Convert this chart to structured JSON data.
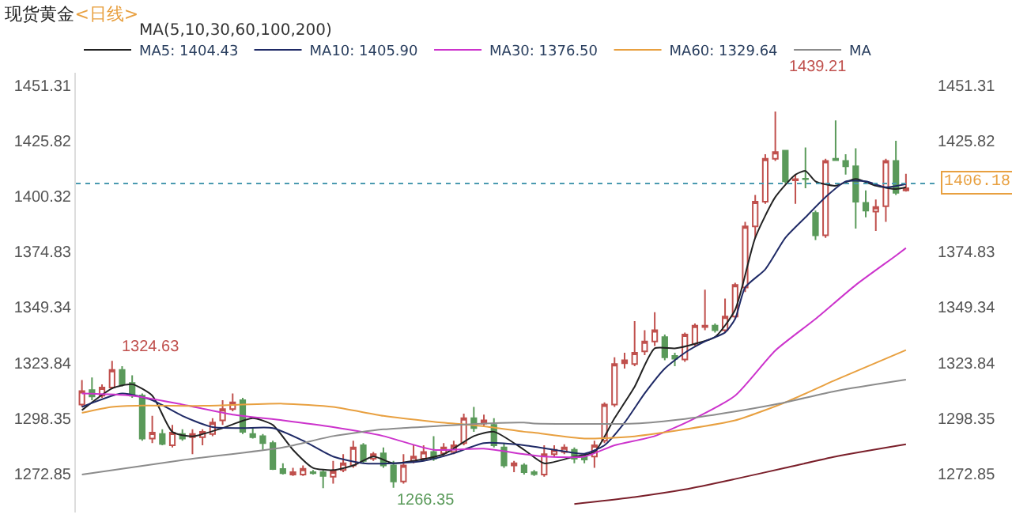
{
  "chart_data": {
    "type": "candlestick",
    "title": "现货黄金",
    "subtitle": "<日线>",
    "annotations": [
      "MA(5,10,30,60,100,200)",
      "1439.21",
      "1324.63",
      "1266.35"
    ],
    "categories": [
      null,
      null,
      null,
      null,
      null,
      null,
      null,
      null,
      null,
      null,
      null,
      null,
      null,
      null,
      null,
      null,
      null,
      null,
      null,
      null,
      null,
      null,
      null,
      null,
      null,
      null,
      null,
      null,
      null,
      null,
      null,
      null,
      null,
      null,
      null,
      null,
      null,
      null,
      null,
      null,
      null,
      null,
      null,
      null,
      null,
      null,
      null,
      null,
      null,
      null,
      null,
      null,
      null,
      null,
      null,
      null,
      null,
      null,
      null,
      null,
      null,
      null,
      null,
      null,
      null,
      null,
      null,
      null,
      null,
      null,
      null,
      null,
      null,
      null,
      null,
      null,
      null,
      null,
      null,
      null,
      null,
      null,
      null
    ],
    "ohlc": [
      [
        1304.6,
        1315.9,
        1303.5,
        1310.8
      ],
      [
        1311.2,
        1317.0,
        1306.6,
        1308.3
      ],
      [
        1308.7,
        1313.9,
        1307.7,
        1312.4
      ],
      [
        1312.4,
        1324.63,
        1311.8,
        1320.5
      ],
      [
        1320.5,
        1322.2,
        1312.9,
        1313.9
      ],
      [
        1314.5,
        1318.0,
        1307.7,
        1308.7
      ],
      [
        1308.7,
        1309.7,
        1288.0,
        1289.0
      ],
      [
        1289.0,
        1299.4,
        1286.9,
        1291.7
      ],
      [
        1291.1,
        1293.2,
        1285.9,
        1286.5
      ],
      [
        1285.9,
        1295.2,
        1284.9,
        1291.7
      ],
      [
        1291.1,
        1293.2,
        1288.0,
        1289.0
      ],
      [
        1289.6,
        1293.2,
        1281.8,
        1291.1
      ],
      [
        1289.6,
        1293.2,
        1285.9,
        1292.1
      ],
      [
        1291.1,
        1298.3,
        1290.1,
        1296.3
      ],
      [
        1297.3,
        1306.6,
        1295.2,
        1302.5
      ],
      [
        1302.5,
        1309.7,
        1301.5,
        1305.6
      ],
      [
        1306.6,
        1307.7,
        1291.1,
        1292.1
      ],
      [
        1291.1,
        1293.8,
        1289.0,
        1289.6
      ],
      [
        1290.1,
        1291.1,
        1283.8,
        1286.9
      ],
      [
        1286.9,
        1288.0,
        1274.5,
        1275.0
      ],
      [
        1275.0,
        1277.6,
        1272.4,
        1273.1
      ],
      [
        1272.4,
        1275.5,
        1271.8,
        1273.5
      ],
      [
        1272.4,
        1276.6,
        1271.8,
        1275.1
      ],
      [
        1273.5,
        1274.5,
        1272.4,
        1273.1
      ],
      [
        1273.5,
        1274.5,
        1266.2,
        1271.8
      ],
      [
        1271.4,
        1278.7,
        1268.3,
        1273.9
      ],
      [
        1274.5,
        1281.8,
        1273.5,
        1277.6
      ],
      [
        1276.6,
        1288.0,
        1275.5,
        1284.9
      ],
      [
        1285.9,
        1286.9,
        1277.6,
        1278.7
      ],
      [
        1279.7,
        1282.8,
        1278.7,
        1281.8
      ],
      [
        1282.2,
        1284.9,
        1275.5,
        1276.6
      ],
      [
        1276.6,
        1278.7,
        1266.35,
        1269.3
      ],
      [
        1269.3,
        1281.8,
        1268.3,
        1276.6
      ],
      [
        1278.7,
        1285.9,
        1277.6,
        1280.7
      ],
      [
        1279.7,
        1285.9,
        1278.7,
        1282.8
      ],
      [
        1282.8,
        1290.1,
        1278.7,
        1279.7
      ],
      [
        1282.2,
        1286.9,
        1280.7,
        1284.9
      ],
      [
        1282.8,
        1288.0,
        1281.8,
        1285.9
      ],
      [
        1286.9,
        1300.4,
        1285.9,
        1298.3
      ],
      [
        1298.3,
        1303.5,
        1292.1,
        1293.8
      ],
      [
        1295.9,
        1300.0,
        1294.2,
        1297.3
      ],
      [
        1295.2,
        1298.3,
        1284.9,
        1285.9
      ],
      [
        1284.9,
        1286.9,
        1275.5,
        1276.6
      ],
      [
        1276.6,
        1278.7,
        1273.5,
        1277.6
      ],
      [
        1276.6,
        1277.6,
        1272.4,
        1273.5
      ],
      [
        1273.5,
        1274.5,
        1271.8,
        1272.6
      ],
      [
        1272.4,
        1285.9,
        1271.4,
        1281.8
      ],
      [
        1281.8,
        1285.9,
        1280.7,
        1283.8
      ],
      [
        1282.8,
        1286.3,
        1281.8,
        1284.9
      ],
      [
        1283.8,
        1284.9,
        1277.6,
        1279.7
      ],
      [
        1280.7,
        1281.8,
        1277.6,
        1279.3
      ],
      [
        1280.7,
        1288.0,
        1275.5,
        1285.9
      ],
      [
        1288.0,
        1305.6,
        1286.9,
        1304.6
      ],
      [
        1304.6,
        1326.3,
        1303.5,
        1323.2
      ],
      [
        1323.6,
        1328.4,
        1321.1,
        1324.9
      ],
      [
        1323.2,
        1342.9,
        1322.2,
        1328.4
      ],
      [
        1329.0,
        1338.7,
        1327.3,
        1333.6
      ],
      [
        1333.6,
        1347.0,
        1331.5,
        1338.7
      ],
      [
        1335.6,
        1336.7,
        1324.9,
        1326.3
      ],
      [
        1326.9,
        1328.4,
        1322.2,
        1325.7
      ],
      [
        1325.3,
        1337.7,
        1324.2,
        1336.7
      ],
      [
        1332.5,
        1341.8,
        1331.5,
        1340.8
      ],
      [
        1340.2,
        1357.4,
        1338.7,
        1340.8
      ],
      [
        1340.8,
        1341.8,
        1337.7,
        1338.7
      ],
      [
        1338.7,
        1353.3,
        1337.7,
        1345.0
      ],
      [
        1345.0,
        1360.5,
        1343.9,
        1359.5
      ],
      [
        1358.4,
        1388.5,
        1356.3,
        1386.4
      ],
      [
        1386.4,
        1400.9,
        1381.2,
        1397.8
      ],
      [
        1397.8,
        1419.6,
        1396.8,
        1417.5
      ],
      [
        1417.5,
        1439.21,
        1416.5,
        1420.6
      ],
      [
        1421.2,
        1421.6,
        1406.1,
        1407.1
      ],
      [
        1407.6,
        1410.2,
        1396.8,
        1408.1
      ],
      [
        1408.3,
        1422.7,
        1404.0,
        1408.1
      ],
      [
        1392.6,
        1393.7,
        1380.2,
        1382.3
      ],
      [
        1382.3,
        1417.5,
        1381.2,
        1416.5
      ],
      [
        1417.5,
        1435.1,
        1416.5,
        1416.9
      ],
      [
        1416.5,
        1419.6,
        1410.2,
        1414.0
      ],
      [
        1414.0,
        1422.3,
        1385.4,
        1397.8
      ],
      [
        1397.2,
        1403.0,
        1390.6,
        1393.7
      ],
      [
        1393.2,
        1398.8,
        1384.3,
        1395.3
      ],
      [
        1395.7,
        1417.5,
        1388.5,
        1416.5
      ],
      [
        1416.5,
        1425.8,
        1400.9,
        1401.9
      ],
      [
        1403.0,
        1410.6,
        1402.4,
        1404.0
      ]
    ],
    "series": [
      {
        "name": "MA5: 1404.43",
        "type": "line",
        "color": "#222222",
        "values": [
          1302,
          null,
          null,
          1312,
          null,
          1313.9,
          null,
          1308.7,
          null,
          1292,
          null,
          1290,
          null,
          null,
          1293.8,
          null,
          null,
          1298.3,
          null,
          1295.2,
          null,
          1283.8,
          null,
          1275.5,
          null,
          1274.5,
          null,
          1276.6,
          null,
          1280.7,
          null,
          1277.6,
          null,
          1278.7,
          null,
          null,
          1281.8,
          null,
          null,
          1290.1,
          null,
          1292.1,
          null,
          null,
          1283.8,
          null,
          1277.6,
          null,
          null,
          1280.7,
          null,
          1282.8,
          null,
          1298.3,
          null,
          1312.8,
          null,
          1330.4,
          null,
          1330.4,
          null,
          1332.5,
          null,
          1335.6,
          null,
          1348.1,
          null,
          1381.2,
          null,
          1399.9,
          null,
          1410.2,
          1411.9,
          1407.1,
          null,
          1405.1,
          null,
          1408.2,
          null,
          1405.1,
          null,
          1403.6,
          1404.4
        ]
      },
      {
        "name": "MA10: 1405.90",
        "type": "line",
        "color": "#1f2a66",
        "values": [
          1303.5,
          null,
          null,
          null,
          1309.7,
          null,
          null,
          1306.6,
          null,
          null,
          1299.4,
          null,
          null,
          1294.2,
          null,
          null,
          1293.8,
          null,
          null,
          1293.8,
          null,
          null,
          1288.0,
          null,
          null,
          1280.7,
          null,
          null,
          1277.6,
          null,
          null,
          1277.6,
          null,
          null,
          1278.7,
          null,
          null,
          1282.2,
          null,
          null,
          1286.9,
          null,
          null,
          null,
          1285.9,
          null,
          null,
          1283.8,
          null,
          null,
          1282,
          null,
          1285.9,
          null,
          1296.3,
          null,
          1309.7,
          null,
          1321.1,
          null,
          1328.4,
          null,
          1333.6,
          null,
          1337.7,
          1343.9,
          1358.4,
          null,
          1366.7,
          null,
          1381.2,
          null,
          1390.6,
          null,
          1399.9,
          null,
          1407.1,
          null,
          1407.1,
          null,
          1404.4,
          null,
          1405.9
        ]
      },
      {
        "name": "MA30: 1376.50",
        "type": "line",
        "color": "#cc33cc",
        "values": [
          1309.7,
          null,
          null,
          null,
          null,
          1308.7,
          null,
          null,
          null,
          null,
          1304.6,
          null,
          null,
          null,
          null,
          1300.0,
          null,
          null,
          null,
          null,
          1297.3,
          null,
          null,
          null,
          null,
          1294.2,
          null,
          null,
          null,
          null,
          1290.1,
          null,
          null,
          null,
          null,
          1283.8,
          null,
          null,
          null,
          null,
          1284.3,
          null,
          null,
          null,
          1281.8,
          null,
          1280.7,
          null,
          null,
          null,
          1280.7,
          null,
          null,
          1285.9,
          null,
          null,
          null,
          1290.1,
          null,
          null,
          null,
          1298.3,
          null,
          null,
          null,
          1308.7,
          null,
          null,
          null,
          1329.4,
          null,
          null,
          null,
          1343.9,
          null,
          null,
          null,
          1359.5,
          null,
          null,
          null,
          1373,
          1376.5
        ]
      },
      {
        "name": "MA60: 1329.64",
        "type": "line",
        "color": "#e8a040",
        "values": [
          1300.8,
          null,
          null,
          1303.5,
          null,
          null,
          1304.1,
          null,
          null,
          null,
          null,
          null,
          1304.0,
          null,
          null,
          null,
          null,
          null,
          null,
          null,
          1305,
          null,
          null,
          null,
          null,
          1303.5,
          null,
          null,
          null,
          null,
          1299.4,
          null,
          null,
          null,
          null,
          1296.7,
          null,
          null,
          null,
          null,
          1294.6,
          null,
          null,
          null,
          1292.1,
          1291.7,
          null,
          null,
          null,
          null,
          1289.0,
          null,
          null,
          null,
          null,
          1290.0,
          null,
          null,
          null,
          null,
          1293.2,
          null,
          null,
          null,
          null,
          1297.3,
          null,
          null,
          null,
          null,
          1305.6,
          null,
          null,
          null,
          null,
          1315.9,
          null,
          null,
          null,
          null,
          null,
          null,
          1329.6
        ]
      },
      {
        "name": "MA",
        "type": "line",
        "color": "#8c8c8c",
        "values": [
          1272.4,
          null,
          null,
          null,
          null,
          null,
          null,
          null,
          null,
          null,
          1279.1,
          null,
          null,
          null,
          null,
          null,
          null,
          null,
          null,
          null,
          1284.9,
          null,
          null,
          null,
          null,
          1290.1,
          null,
          null,
          null,
          null,
          1293.2,
          null,
          null,
          null,
          null,
          1294.6,
          null,
          null,
          null,
          null,
          1295.9,
          null,
          null,
          null,
          1296.3,
          1295.9,
          null,
          null,
          null,
          null,
          null,
          null,
          null,
          null,
          null,
          1295.9,
          null,
          null,
          null,
          null,
          1298.0,
          null,
          null,
          null,
          null,
          1301.4,
          null,
          null,
          null,
          null,
          1305.6,
          null,
          null,
          null,
          null,
          1310.8,
          null,
          null,
          null,
          null,
          null,
          null,
          1316.0
        ]
      },
      {
        "type": "line",
        "color": "#7a1f2a",
        "values": [
          null,
          null,
          null,
          null,
          null,
          null,
          null,
          null,
          null,
          null,
          null,
          null,
          null,
          null,
          null,
          null,
          null,
          null,
          null,
          null,
          null,
          null,
          null,
          null,
          null,
          null,
          null,
          null,
          null,
          null,
          null,
          null,
          null,
          null,
          null,
          null,
          null,
          null,
          null,
          null,
          null,
          null,
          null,
          null,
          null,
          null,
          null,
          null,
          null,
          1258.9,
          null,
          null,
          null,
          null,
          null,
          1262.1,
          null,
          null,
          null,
          null,
          1265.6,
          null,
          null,
          null,
          null,
          1270.4,
          null,
          null,
          null,
          null,
          1275.5,
          null,
          null,
          null,
          null,
          1280.7,
          null,
          null,
          null,
          null,
          null,
          null,
          1286.3
        ]
      }
    ],
    "ylim": [
      1255,
      1457
    ],
    "yticks": [
      1272.85,
      1298.35,
      1323.84,
      1349.34,
      1374.83,
      1400.32,
      1425.82,
      1451.31
    ],
    "y2lim": [
      1255,
      1457
    ],
    "y2ticks": [
      1272.85,
      1298.35,
      1323.84,
      1349.34,
      1374.83,
      1425.82,
      1451.31
    ],
    "ref_lines": [
      {
        "axis": "y",
        "value": 1406.18,
        "label": "1406.18",
        "color": "#4a9ab0",
        "line_style": "dotted"
      }
    ],
    "tick_labels": "y",
    "legend": "top left"
  }
}
